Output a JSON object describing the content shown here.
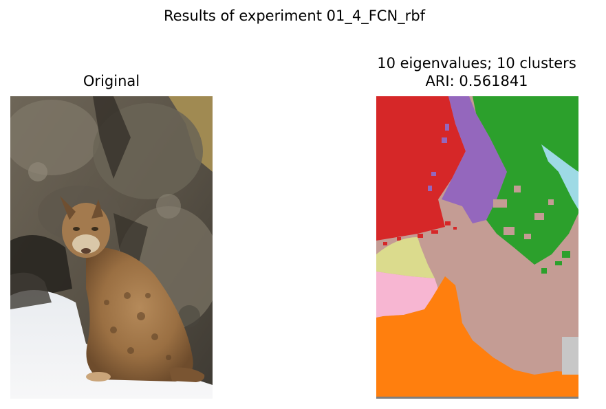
{
  "figure": {
    "suptitle": "Results of experiment 01_4_FCN_rbf"
  },
  "panels": {
    "original": {
      "title": "Original",
      "subject": "bobcat-photo"
    },
    "segmentation": {
      "title_line1": "10 eigenvalues; 10 clusters",
      "title_line2": "ARI: 0.561841",
      "eigenvalues": 10,
      "clusters": 10,
      "ari": 0.561841
    }
  },
  "colors": {
    "cluster_red": "#d62728",
    "cluster_purple": "#9467bd",
    "cluster_green": "#2ca02c",
    "cluster_cyan": "#9edae5",
    "cluster_tan": "#c49c94",
    "cluster_olive": "#dbdb8d",
    "cluster_pink": "#f7b6d2",
    "cluster_orange": "#ff7f0e",
    "cluster_gray": "#c7c7c7"
  }
}
